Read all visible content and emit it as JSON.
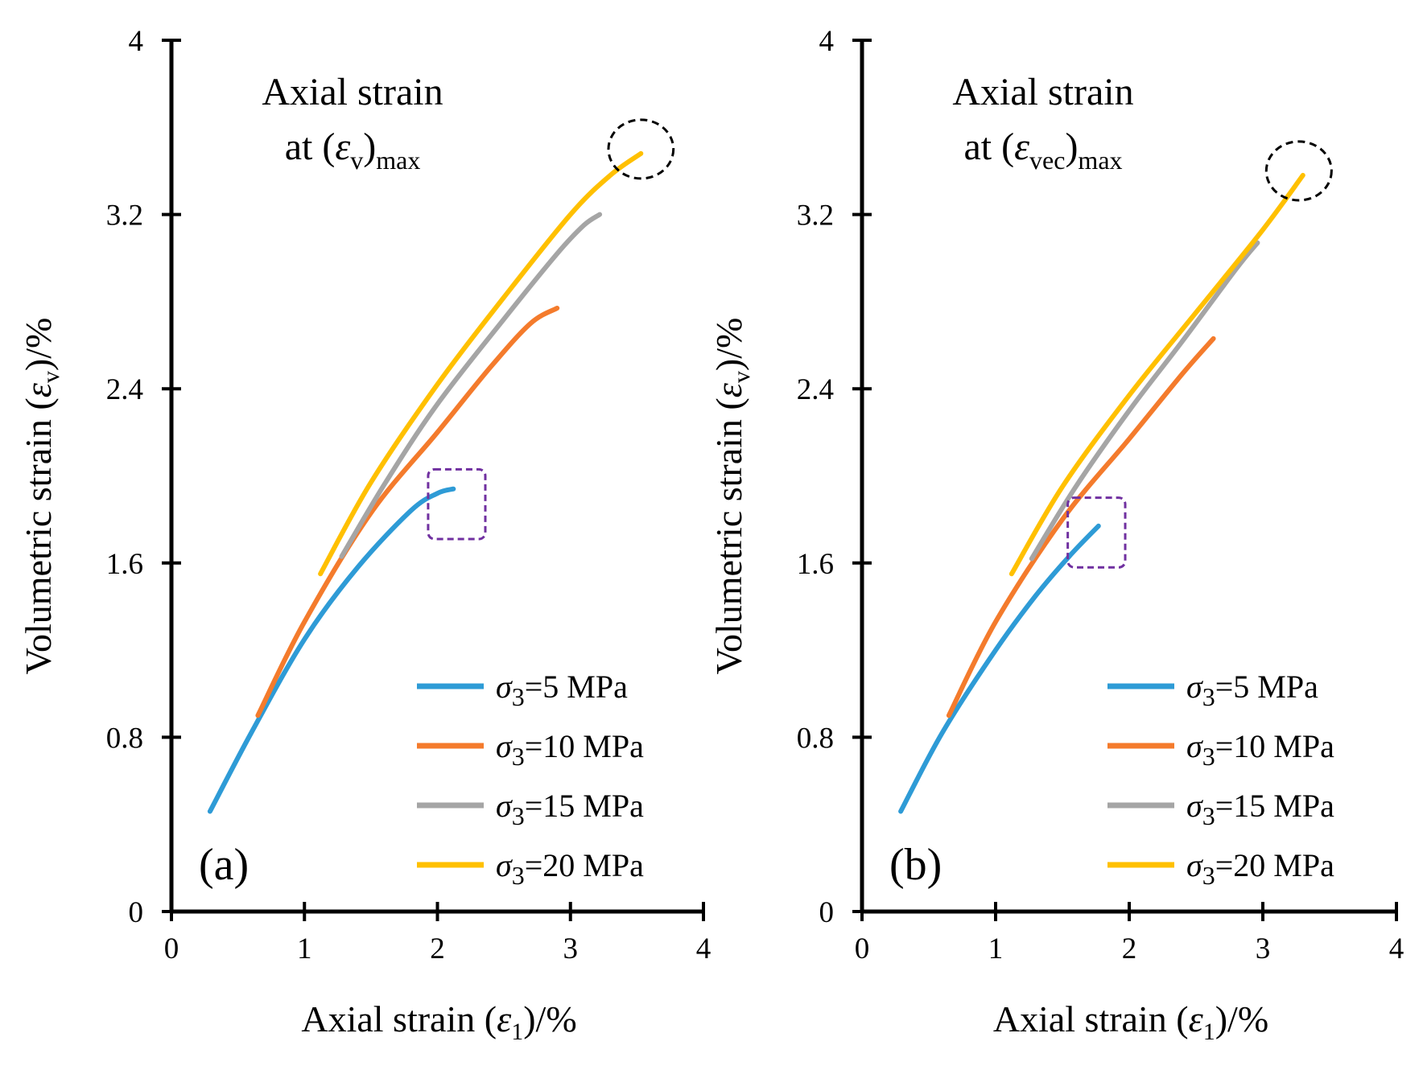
{
  "chart_data": [
    {
      "type": "line",
      "panel_label": "(a)",
      "title": "Axial strain",
      "title_line2_prefix": "at (",
      "title_symbol": "ε",
      "title_symbol_sub": "v",
      "title_close": ")",
      "title_sub": "max",
      "xlabel_prefix": "Axial strain (",
      "xlabel_symbol": "ε",
      "xlabel_sub": "1",
      "xlabel_suffix": ")/%",
      "ylabel_prefix": "Volumetric strain (",
      "ylabel_symbol": "ε",
      "ylabel_sub": "v",
      "ylabel_suffix": ")/%",
      "xlim": [
        0,
        4
      ],
      "ylim": [
        0,
        4
      ],
      "xticks": [
        0,
        1,
        2,
        3,
        4
      ],
      "xtick_labels": [
        "0",
        "1",
        "2",
        "3",
        "4"
      ],
      "yticks": [
        0,
        0.8,
        1.6,
        2.4,
        3.2,
        4
      ],
      "ytick_labels": [
        "0",
        "0.8",
        "1.6",
        "2.4",
        "3.2",
        "4"
      ],
      "grid": false,
      "legend_position": "bottom-right",
      "series": [
        {
          "name": "σ3=5 MPa",
          "sigma": "σ",
          "sub": "3",
          "value_text": "=5 MPa",
          "color": "#2E9BD6",
          "x": [
            0.29,
            0.6,
            1.0,
            1.4,
            1.8,
            2.0,
            2.12
          ],
          "y": [
            0.46,
            0.82,
            1.25,
            1.58,
            1.84,
            1.92,
            1.94
          ]
        },
        {
          "name": "σ3=10 MPa",
          "sigma": "σ",
          "sub": "3",
          "value_text": "=10 MPa",
          "color": "#F47B2C",
          "x": [
            0.65,
            1.0,
            1.5,
            2.0,
            2.4,
            2.7,
            2.9
          ],
          "y": [
            0.9,
            1.33,
            1.83,
            2.2,
            2.5,
            2.7,
            2.77
          ]
        },
        {
          "name": "σ3=15 MPa",
          "sigma": "σ",
          "sub": "3",
          "value_text": "=15 MPa",
          "color": "#A5A5A5",
          "x": [
            1.28,
            1.6,
            2.0,
            2.5,
            2.9,
            3.1,
            3.22
          ],
          "y": [
            1.63,
            1.96,
            2.33,
            2.72,
            3.02,
            3.15,
            3.2
          ]
        },
        {
          "name": "σ3=20 MPa",
          "sigma": "σ",
          "sub": "3",
          "value_text": "=20 MPa",
          "color": "#FFC000",
          "x": [
            1.12,
            1.5,
            2.0,
            2.5,
            3.0,
            3.3,
            3.53
          ],
          "y": [
            1.55,
            1.97,
            2.42,
            2.82,
            3.2,
            3.38,
            3.48
          ]
        }
      ],
      "highlight_ellipse": {
        "cx": 3.53,
        "cy": 3.5,
        "rx": 0.33,
        "ry": 0.3,
        "color": "#000000"
      },
      "highlight_rect": {
        "x0": 1.93,
        "x1": 2.36,
        "y0": 1.71,
        "y1": 2.03,
        "color": "#7030A0"
      }
    },
    {
      "type": "line",
      "panel_label": "(b)",
      "title": "Axial strain",
      "title_line2_prefix": "at (",
      "title_symbol": "ε",
      "title_symbol_sub": "vec",
      "title_close": ")",
      "title_sub": "max",
      "xlabel_prefix": "Axial strain (",
      "xlabel_symbol": "ε",
      "xlabel_sub": "1",
      "xlabel_suffix": ")/%",
      "ylabel_prefix": "Volumetric strain (",
      "ylabel_symbol": "ε",
      "ylabel_sub": "v",
      "ylabel_suffix": ")/%",
      "xlim": [
        0,
        4
      ],
      "ylim": [
        0,
        4
      ],
      "xticks": [
        0,
        1,
        2,
        3,
        4
      ],
      "xtick_labels": [
        "0",
        "1",
        "2",
        "3",
        "4"
      ],
      "yticks": [
        0,
        0.8,
        1.6,
        2.4,
        3.2,
        4
      ],
      "ytick_labels": [
        "0",
        "0.8",
        "1.6",
        "2.4",
        "3.2",
        "4"
      ],
      "grid": false,
      "legend_position": "bottom-right",
      "series": [
        {
          "name": "σ3=5 MPa",
          "sigma": "σ",
          "sub": "3",
          "value_text": "=5 MPa",
          "color": "#2E9BD6",
          "x": [
            0.29,
            0.6,
            1.0,
            1.3,
            1.55,
            1.77
          ],
          "y": [
            0.46,
            0.82,
            1.2,
            1.45,
            1.63,
            1.77
          ]
        },
        {
          "name": "σ3=10 MPa",
          "sigma": "σ",
          "sub": "3",
          "value_text": "=10 MPa",
          "color": "#F47B2C",
          "x": [
            0.65,
            1.0,
            1.5,
            2.0,
            2.4,
            2.63
          ],
          "y": [
            0.9,
            1.33,
            1.8,
            2.17,
            2.47,
            2.63
          ]
        },
        {
          "name": "σ3=15 MPa",
          "sigma": "σ",
          "sub": "3",
          "value_text": "=15 MPa",
          "color": "#A5A5A5",
          "x": [
            1.27,
            1.6,
            2.0,
            2.4,
            2.8,
            2.96
          ],
          "y": [
            1.62,
            1.95,
            2.3,
            2.62,
            2.95,
            3.07
          ]
        },
        {
          "name": "σ3=20 MPa",
          "sigma": "σ",
          "sub": "3",
          "value_text": "=20 MPa",
          "color": "#FFC000",
          "x": [
            1.12,
            1.5,
            2.0,
            2.5,
            3.0,
            3.3
          ],
          "y": [
            1.55,
            1.95,
            2.37,
            2.75,
            3.13,
            3.38
          ]
        }
      ],
      "highlight_ellipse": {
        "cx": 3.27,
        "cy": 3.4,
        "rx": 0.33,
        "ry": 0.3,
        "color": "#000000"
      },
      "highlight_rect": {
        "x0": 1.54,
        "x1": 1.97,
        "y0": 1.58,
        "y1": 1.9,
        "color": "#7030A0"
      }
    }
  ]
}
